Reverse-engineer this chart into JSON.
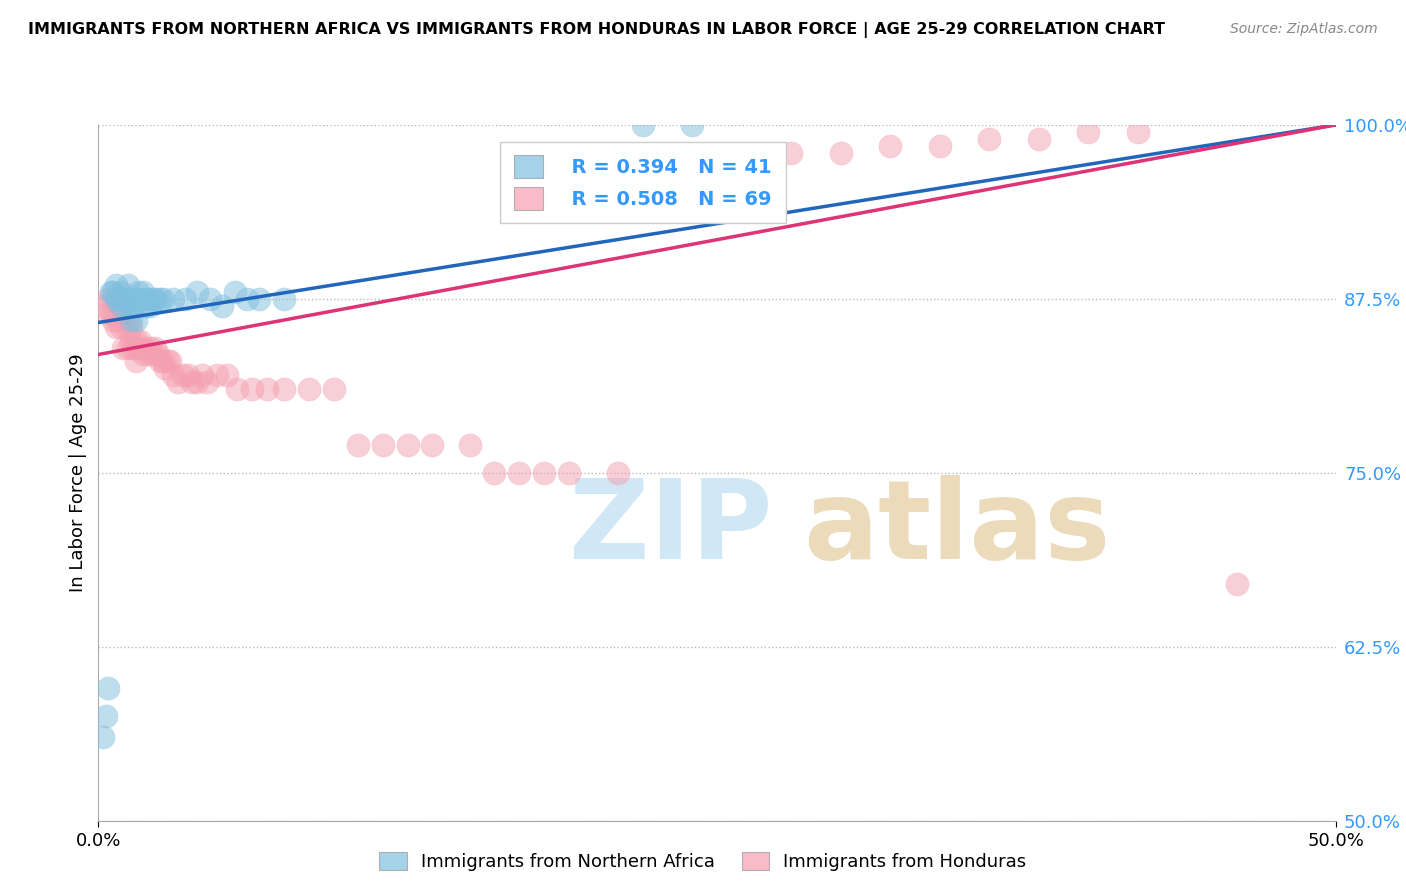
{
  "title": "IMMIGRANTS FROM NORTHERN AFRICA VS IMMIGRANTS FROM HONDURAS IN LABOR FORCE | AGE 25-29 CORRELATION CHART",
  "source": "Source: ZipAtlas.com",
  "ylabel_label": "In Labor Force | Age 25-29",
  "xmin": 0.0,
  "xmax": 0.5,
  "ymin": 0.5,
  "ymax": 1.0,
  "yticks": [
    0.5,
    0.625,
    0.75,
    0.875,
    1.0
  ],
  "ytick_labels": [
    "50.0%",
    "62.5%",
    "75.0%",
    "87.5%",
    "100.0%"
  ],
  "legend_blue_r": "R = 0.394",
  "legend_blue_n": "N = 41",
  "legend_pink_r": "R = 0.508",
  "legend_pink_n": "N = 69",
  "blue_color": "#7fbfdf",
  "pink_color": "#f4a0b0",
  "blue_line_color": "#2266bb",
  "pink_line_color": "#dd3377",
  "blue_line_x0": 0.0,
  "blue_line_y0": 0.858,
  "blue_line_x1": 0.5,
  "blue_line_y1": 1.0,
  "pink_line_x0": 0.0,
  "pink_line_y0": 0.835,
  "pink_line_x1": 0.5,
  "pink_line_y1": 1.0,
  "blue_scatter_x": [
    0.002,
    0.003,
    0.004,
    0.005,
    0.006,
    0.007,
    0.007,
    0.008,
    0.009,
    0.009,
    0.01,
    0.011,
    0.012,
    0.013,
    0.013,
    0.014,
    0.015,
    0.015,
    0.016,
    0.017,
    0.018,
    0.018,
    0.019,
    0.02,
    0.021,
    0.022,
    0.023,
    0.025,
    0.026,
    0.03,
    0.035,
    0.04,
    0.045,
    0.05,
    0.055,
    0.06,
    0.065,
    0.075,
    0.22,
    0.24,
    0.26
  ],
  "blue_scatter_y": [
    0.56,
    0.575,
    0.595,
    0.88,
    0.88,
    0.875,
    0.885,
    0.875,
    0.87,
    0.88,
    0.875,
    0.87,
    0.885,
    0.86,
    0.875,
    0.87,
    0.86,
    0.875,
    0.88,
    0.875,
    0.875,
    0.88,
    0.87,
    0.875,
    0.87,
    0.875,
    0.875,
    0.875,
    0.875,
    0.875,
    0.875,
    0.88,
    0.875,
    0.87,
    0.88,
    0.875,
    0.875,
    0.875,
    1.0,
    1.0,
    0.97
  ],
  "pink_scatter_x": [
    0.002,
    0.003,
    0.004,
    0.005,
    0.006,
    0.006,
    0.007,
    0.008,
    0.008,
    0.009,
    0.009,
    0.01,
    0.011,
    0.012,
    0.012,
    0.013,
    0.013,
    0.014,
    0.015,
    0.015,
    0.016,
    0.017,
    0.018,
    0.019,
    0.02,
    0.021,
    0.022,
    0.023,
    0.024,
    0.025,
    0.026,
    0.027,
    0.028,
    0.029,
    0.03,
    0.032,
    0.034,
    0.036,
    0.038,
    0.04,
    0.042,
    0.044,
    0.048,
    0.052,
    0.056,
    0.062,
    0.068,
    0.075,
    0.085,
    0.095,
    0.105,
    0.115,
    0.125,
    0.135,
    0.15,
    0.16,
    0.17,
    0.18,
    0.19,
    0.21,
    0.28,
    0.3,
    0.32,
    0.34,
    0.36,
    0.38,
    0.4,
    0.42,
    0.46
  ],
  "pink_scatter_y": [
    0.87,
    0.865,
    0.875,
    0.865,
    0.86,
    0.875,
    0.855,
    0.86,
    0.875,
    0.855,
    0.87,
    0.84,
    0.855,
    0.84,
    0.86,
    0.845,
    0.855,
    0.84,
    0.83,
    0.845,
    0.84,
    0.845,
    0.835,
    0.84,
    0.835,
    0.84,
    0.835,
    0.84,
    0.835,
    0.83,
    0.83,
    0.825,
    0.83,
    0.83,
    0.82,
    0.815,
    0.82,
    0.82,
    0.815,
    0.815,
    0.82,
    0.815,
    0.82,
    0.82,
    0.81,
    0.81,
    0.81,
    0.81,
    0.81,
    0.81,
    0.77,
    0.77,
    0.77,
    0.77,
    0.77,
    0.75,
    0.75,
    0.75,
    0.75,
    0.75,
    0.98,
    0.98,
    0.985,
    0.985,
    0.99,
    0.99,
    0.995,
    0.995,
    0.67
  ]
}
